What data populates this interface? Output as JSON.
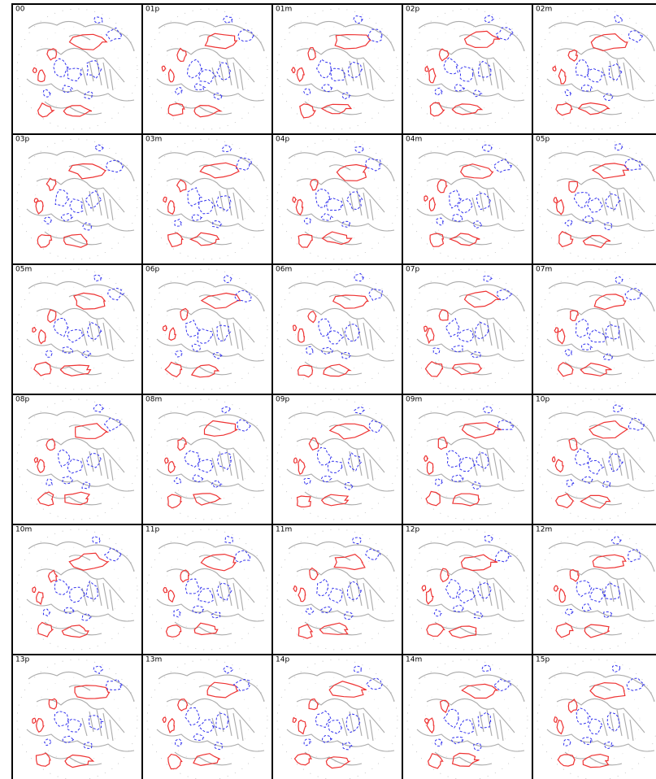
{
  "panels": [
    {
      "label": "00"
    },
    {
      "label": "01p"
    },
    {
      "label": "01m"
    },
    {
      "label": "02p"
    },
    {
      "label": "02m"
    },
    {
      "label": "03p"
    },
    {
      "label": "03m"
    },
    {
      "label": "04p"
    },
    {
      "label": "04m"
    },
    {
      "label": "05p"
    },
    {
      "label": "05m"
    },
    {
      "label": "06p"
    },
    {
      "label": "06m"
    },
    {
      "label": "07p"
    },
    {
      "label": "07m"
    },
    {
      "label": "08p"
    },
    {
      "label": "08m"
    },
    {
      "label": "09p"
    },
    {
      "label": "09m"
    },
    {
      "label": "10p"
    },
    {
      "label": "10m"
    },
    {
      "label": "11p"
    },
    {
      "label": "11m"
    },
    {
      "label": "12p"
    },
    {
      "label": "12m"
    },
    {
      "label": "13p"
    },
    {
      "label": "13m"
    },
    {
      "label": "14p"
    },
    {
      "label": "14m"
    },
    {
      "label": "15p"
    }
  ]
}
